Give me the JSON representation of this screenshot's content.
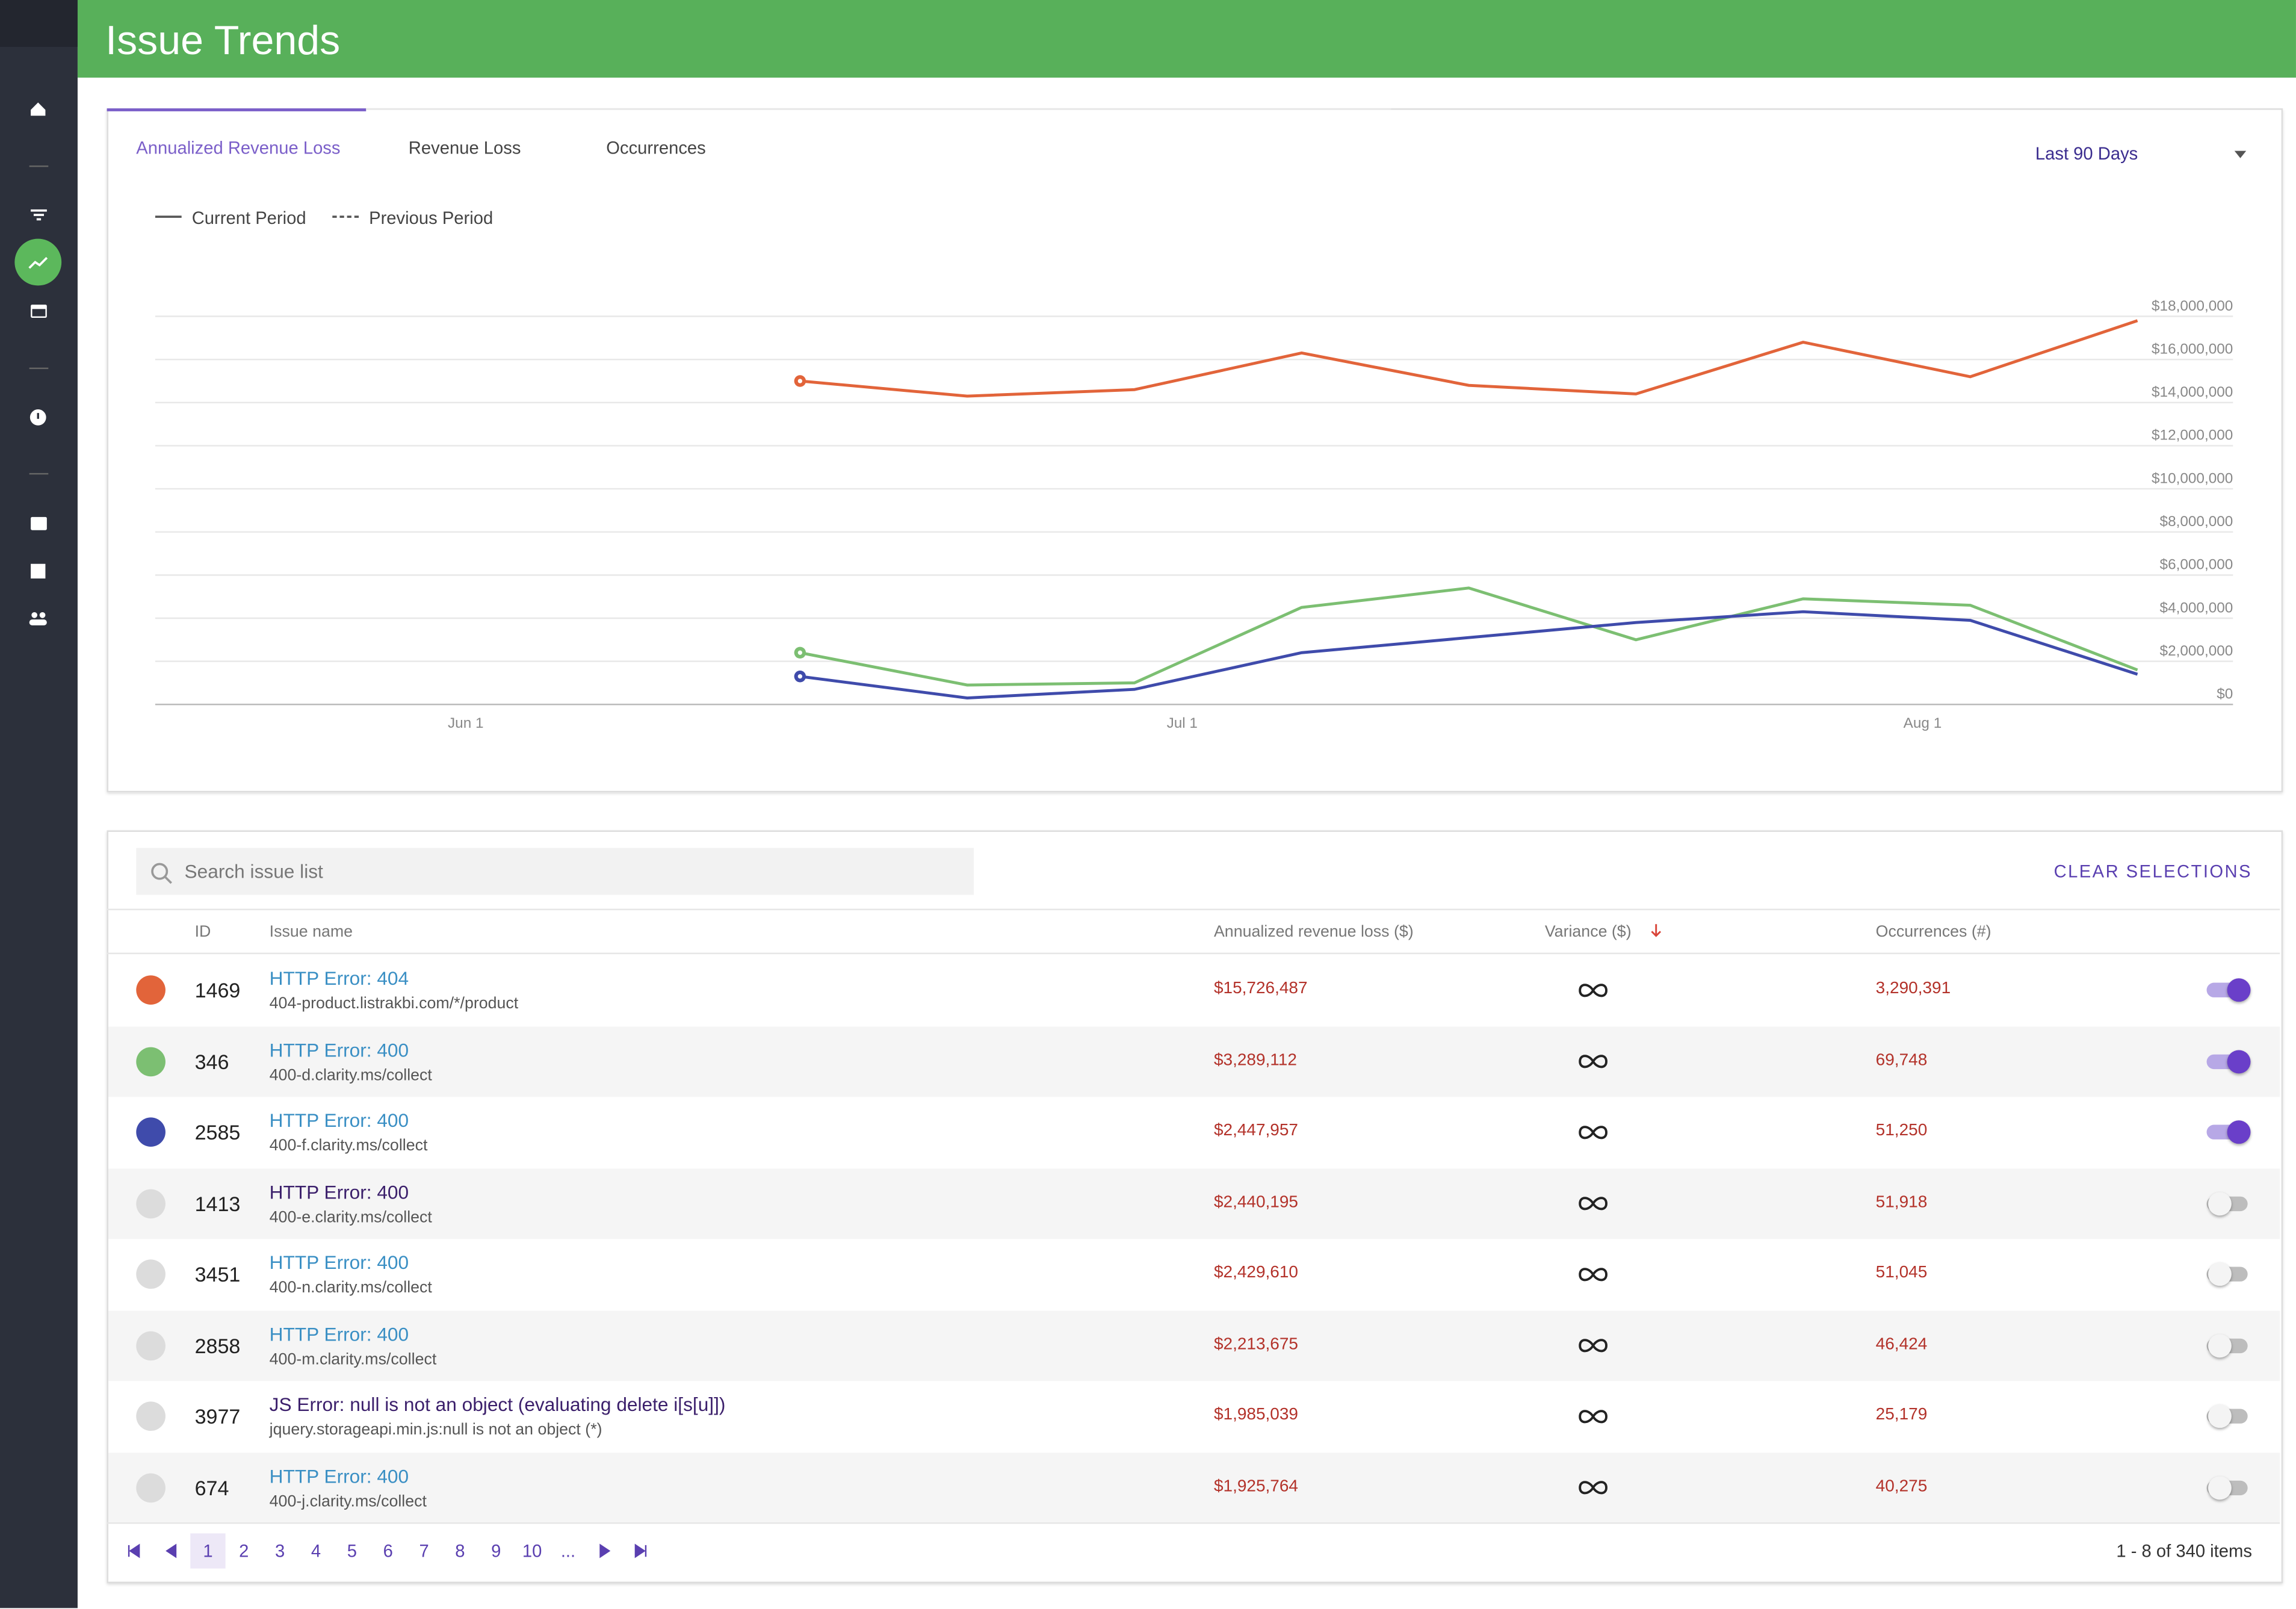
{
  "header": {
    "title": "Issue Trends"
  },
  "tabs": [
    "Annualized Revenue Loss",
    "Revenue Loss",
    "Occurrences"
  ],
  "active_tab": 0,
  "range": "Last 90 Days",
  "chart_data": {
    "type": "line",
    "legend": [
      "Current Period",
      "Previous Period"
    ],
    "x": [
      "06-15",
      "06-22",
      "06-29",
      "07-06",
      "07-13",
      "07-20",
      "07-27",
      "08-03",
      "08-10"
    ],
    "xlim": [
      "05-19",
      "08-14"
    ],
    "xticks": [
      {
        "value": "06-01",
        "label": "Jun 1"
      },
      {
        "value": "07-01",
        "label": "Jul 1"
      },
      {
        "value": "08-01",
        "label": "Aug 1"
      }
    ],
    "ylim": [
      0,
      18000000
    ],
    "yticks": [
      {
        "value": 0,
        "label": "$0"
      },
      {
        "value": 2000000,
        "label": "$2,000,000"
      },
      {
        "value": 4000000,
        "label": "$4,000,000"
      },
      {
        "value": 6000000,
        "label": "$6,000,000"
      },
      {
        "value": 8000000,
        "label": "$8,000,000"
      },
      {
        "value": 10000000,
        "label": "$10,000,000"
      },
      {
        "value": 12000000,
        "label": "$12,000,000"
      },
      {
        "value": 14000000,
        "label": "$14,000,000"
      },
      {
        "value": 16000000,
        "label": "$16,000,000"
      },
      {
        "value": 18000000,
        "label": "$18,000,000"
      }
    ],
    "grid": true,
    "series": [
      {
        "color": "#e2643a",
        "values": [
          15000000,
          14300000,
          14600000,
          16300000,
          14800000,
          14400000,
          16800000,
          15200000,
          17800000
        ]
      },
      {
        "color": "#7cbf72",
        "values": [
          2400000,
          900000,
          1000000,
          4500000,
          5400000,
          3000000,
          4900000,
          4600000,
          1600000
        ]
      },
      {
        "color": "#3f4bab",
        "values": [
          1300000,
          300000,
          700000,
          2400000,
          3100000,
          3800000,
          4300000,
          3900000,
          1400000
        ]
      }
    ]
  },
  "search": {
    "placeholder": "Search issue list"
  },
  "clear": "CLEAR SELECTIONS",
  "table": {
    "columns": [
      "ID",
      "Issue name",
      "Annualized revenue loss ($)",
      "Variance ($)",
      "Occurrences (#)"
    ],
    "rows": [
      {
        "color": "#e2643a",
        "id": 1469,
        "name": "HTTP Error: 404",
        "path": "404-product.listrakbi.com/*/product",
        "revenue": "$15,726,487",
        "occurrences": "3,290,391",
        "selected": true,
        "visited": false
      },
      {
        "color": "#7cbf72",
        "id": 346,
        "name": "HTTP Error: 400",
        "path": "400-d.clarity.ms/collect",
        "revenue": "$3,289,112",
        "occurrences": "69,748",
        "selected": true,
        "visited": false
      },
      {
        "color": "#3f4bab",
        "id": 2585,
        "name": "HTTP Error: 400",
        "path": "400-f.clarity.ms/collect",
        "revenue": "$2,447,957",
        "occurrences": "51,250",
        "selected": true,
        "visited": false
      },
      {
        "color": "#dcdcdc",
        "id": 1413,
        "name": "HTTP Error: 400",
        "path": "400-e.clarity.ms/collect",
        "revenue": "$2,440,195",
        "occurrences": "51,918",
        "selected": false,
        "visited": true
      },
      {
        "color": "#dcdcdc",
        "id": 3451,
        "name": "HTTP Error: 400",
        "path": "400-n.clarity.ms/collect",
        "revenue": "$2,429,610",
        "occurrences": "51,045",
        "selected": false,
        "visited": false
      },
      {
        "color": "#dcdcdc",
        "id": 2858,
        "name": "HTTP Error: 400",
        "path": "400-m.clarity.ms/collect",
        "revenue": "$2,213,675",
        "occurrences": "46,424",
        "selected": false,
        "visited": false
      },
      {
        "color": "#dcdcdc",
        "id": 3977,
        "name": "JS Error: null is not an object (evaluating delete i[s[u]])",
        "path": "jquery.storageapi.min.js:null is not an object (*)",
        "revenue": "$1,985,039",
        "occurrences": "25,179",
        "selected": false,
        "visited": true
      },
      {
        "color": "#dcdcdc",
        "id": 674,
        "name": "HTTP Error: 400",
        "path": "400-j.clarity.ms/collect",
        "revenue": "$1,925,764",
        "occurrences": "40,275",
        "selected": false,
        "visited": false
      }
    ]
  },
  "pagination": {
    "pages": [
      1,
      2,
      3,
      4,
      5,
      6,
      7,
      8,
      9,
      10,
      "..."
    ],
    "current": 0,
    "summary": "1 - 8 of 340 items"
  }
}
